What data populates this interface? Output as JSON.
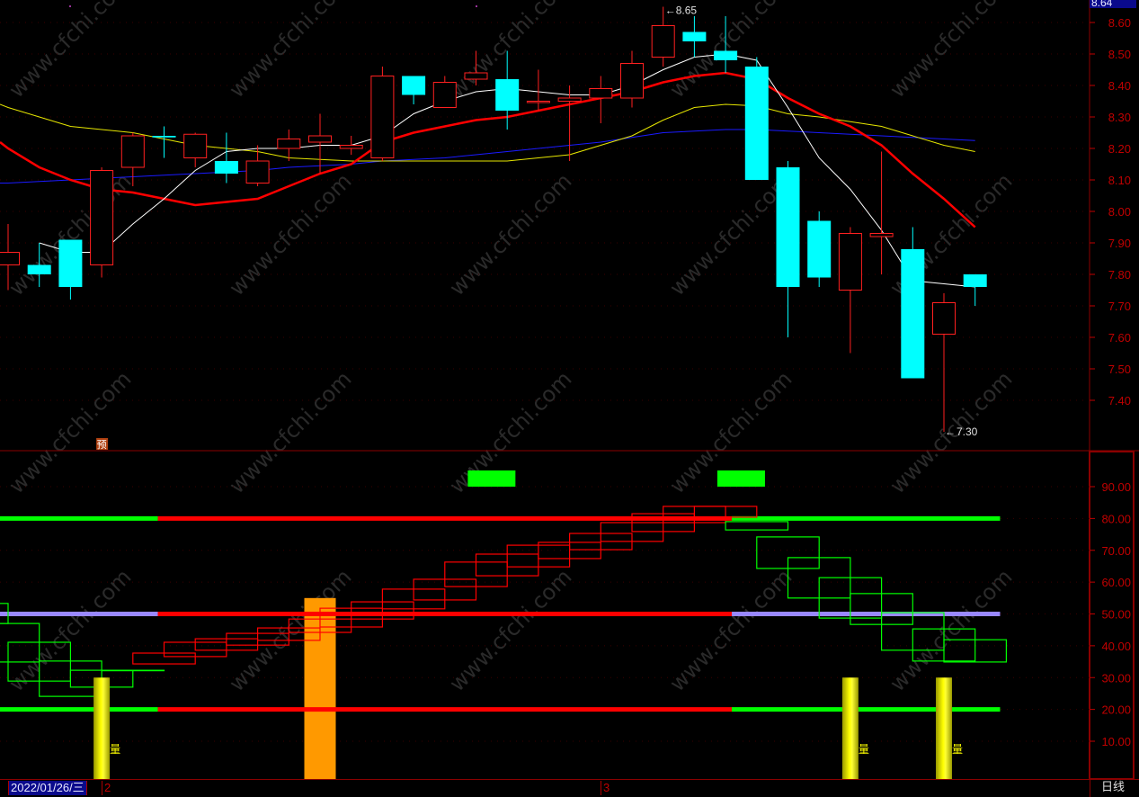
{
  "watermark": "www.cfchi.com",
  "current_price_label": "8.64",
  "colors": {
    "up": "#ff2020",
    "down": "#00ffff",
    "ma5": "#ffffff",
    "ma10": "#ff0000",
    "ma20": "#e6e600",
    "ma60": "#1a1aff",
    "axis": "#c00000",
    "box_up": "#ff0000",
    "box_down": "#00ff00",
    "band_green": "#00ff00",
    "band_red": "#ff0000",
    "band_purple": "#9988ff",
    "signal_green": "#00ff00",
    "orange_bar": "#ff9900",
    "yellow_bar": "#ffff00"
  },
  "chart_data": [
    {
      "type": "candlestick",
      "ylim": [
        7.2,
        8.64
      ],
      "y_ticks": [
        "8.60",
        "8.50",
        "8.40",
        "8.30",
        "8.20",
        "8.10",
        "8.00",
        "7.90",
        "7.80",
        "7.70",
        "7.60",
        "7.50",
        "7.40"
      ],
      "candles": [
        [
          7.83,
          7.96,
          7.75,
          7.87
        ],
        [
          7.83,
          7.9,
          7.76,
          7.8
        ],
        [
          7.91,
          7.91,
          7.72,
          7.76
        ],
        [
          7.83,
          8.14,
          7.79,
          8.13
        ],
        [
          8.14,
          8.25,
          8.08,
          8.24
        ],
        [
          8.24,
          8.27,
          8.17,
          8.235
        ],
        [
          8.17,
          8.25,
          8.14,
          8.245
        ],
        [
          8.16,
          8.25,
          8.09,
          8.12
        ],
        [
          8.09,
          8.21,
          8.08,
          8.16
        ],
        [
          8.2,
          8.26,
          8.16,
          8.23
        ],
        [
          8.22,
          8.31,
          8.12,
          8.24
        ],
        [
          8.2,
          8.24,
          8.18,
          8.21
        ],
        [
          8.17,
          8.46,
          8.16,
          8.43
        ],
        [
          8.43,
          8.43,
          8.34,
          8.37
        ],
        [
          8.33,
          8.43,
          8.33,
          8.41
        ],
        [
          8.42,
          8.51,
          8.4,
          8.44
        ],
        [
          8.42,
          8.51,
          8.26,
          8.32
        ],
        [
          8.35,
          8.45,
          8.32,
          8.35
        ],
        [
          8.35,
          8.4,
          8.16,
          8.36
        ],
        [
          8.36,
          8.43,
          8.28,
          8.39
        ],
        [
          8.36,
          8.51,
          8.33,
          8.47
        ],
        [
          8.49,
          8.65,
          8.46,
          8.59
        ],
        [
          8.57,
          8.62,
          8.49,
          8.54
        ],
        [
          8.51,
          8.62,
          8.44,
          8.48
        ],
        [
          8.46,
          8.49,
          8.1,
          8.1
        ],
        [
          8.14,
          8.16,
          7.6,
          7.76
        ],
        [
          7.97,
          8.0,
          7.76,
          7.79
        ],
        [
          7.75,
          7.95,
          7.55,
          7.93
        ],
        [
          7.92,
          8.19,
          7.8,
          7.93
        ],
        [
          7.88,
          7.95,
          7.47,
          7.47
        ],
        [
          7.61,
          7.74,
          7.3,
          7.71
        ],
        [
          7.8,
          7.8,
          7.7,
          7.76
        ]
      ],
      "ma5": [
        null,
        7.9,
        7.87,
        7.87,
        7.96,
        8.04,
        8.13,
        8.19,
        8.2,
        8.2,
        8.21,
        8.21,
        8.24,
        8.31,
        8.35,
        8.38,
        8.39,
        8.38,
        8.37,
        8.37,
        8.4,
        8.45,
        8.49,
        8.5,
        8.48,
        8.33,
        8.17,
        8.07,
        7.94,
        7.78,
        7.77,
        7.76
      ],
      "ma10": [
        8.2,
        8.14,
        8.1,
        8.07,
        8.06,
        8.04,
        8.02,
        8.03,
        8.04,
        8.08,
        8.12,
        8.15,
        8.22,
        8.25,
        8.27,
        8.29,
        8.3,
        8.32,
        8.34,
        8.36,
        8.38,
        8.41,
        8.43,
        8.44,
        8.42,
        8.36,
        8.31,
        8.27,
        8.21,
        8.12,
        8.04,
        7.95
      ],
      "ma20": [
        8.33,
        8.3,
        8.27,
        8.26,
        8.25,
        8.23,
        8.21,
        8.2,
        8.19,
        8.17,
        8.165,
        8.16,
        8.16,
        8.16,
        8.16,
        8.16,
        8.16,
        8.17,
        8.18,
        8.21,
        8.24,
        8.29,
        8.33,
        8.34,
        8.335,
        8.31,
        8.3,
        8.285,
        8.27,
        8.24,
        8.21,
        8.19
      ],
      "ma60": [
        8.09,
        8.095,
        8.1,
        8.105,
        8.11,
        8.115,
        8.12,
        8.125,
        8.13,
        8.14,
        8.145,
        8.15,
        8.16,
        8.165,
        8.17,
        8.18,
        8.19,
        8.2,
        8.21,
        8.22,
        8.235,
        8.25,
        8.255,
        8.26,
        8.26,
        8.255,
        8.25,
        8.245,
        8.24,
        8.235,
        8.23,
        8.225
      ],
      "high_marker": {
        "label": "8.65",
        "candle": 21
      },
      "low_marker": {
        "label": "7.30",
        "candle": 30
      },
      "forecast_badge": {
        "label": "预",
        "candle": 3
      }
    },
    {
      "type": "indicator",
      "ylim": [
        0,
        100
      ],
      "y_ticks": [
        "90.00",
        "80.00",
        "70.00",
        "60.00",
        "50.00",
        "40.00",
        "30.00",
        "20.00",
        "10.00"
      ],
      "boxes": [
        {
          "start": -2,
          "top": 53.3,
          "bottom": 47.0,
          "dir": "down"
        },
        {
          "start": -1,
          "top": 47.0,
          "bottom": 34.9,
          "dir": "down"
        },
        {
          "start": 0,
          "top": 41.1,
          "bottom": 28.9,
          "dir": "down"
        },
        {
          "start": 1,
          "top": 35.2,
          "bottom": 24.1,
          "dir": "down"
        },
        {
          "start": 2,
          "top": 32.3,
          "bottom": 27.0,
          "dir": "down"
        },
        {
          "start": 3,
          "top": 32.3,
          "bottom": 32.3,
          "dir": "down"
        },
        {
          "start": 4,
          "top": 37.7,
          "bottom": 34.3,
          "dir": "up"
        },
        {
          "start": 5,
          "top": 41.1,
          "bottom": 36.6,
          "dir": "up"
        },
        {
          "start": 6,
          "top": 42.2,
          "bottom": 38.6,
          "dir": "up"
        },
        {
          "start": 7,
          "top": 43.9,
          "bottom": 40.2,
          "dir": "up"
        },
        {
          "start": 8,
          "top": 45.6,
          "bottom": 41.7,
          "dir": "up"
        },
        {
          "start": 9,
          "top": 48.4,
          "bottom": 44.2,
          "dir": "up"
        },
        {
          "start": 10,
          "top": 51.8,
          "bottom": 45.9,
          "dir": "up"
        },
        {
          "start": 11,
          "top": 53.8,
          "bottom": 48.4,
          "dir": "up"
        },
        {
          "start": 12,
          "top": 57.8,
          "bottom": 51.6,
          "dir": "up"
        },
        {
          "start": 13,
          "top": 60.9,
          "bottom": 54.4,
          "dir": "up"
        },
        {
          "start": 14,
          "top": 66.3,
          "bottom": 58.6,
          "dir": "up"
        },
        {
          "start": 15,
          "top": 68.8,
          "bottom": 62.0,
          "dir": "up"
        },
        {
          "start": 16,
          "top": 71.6,
          "bottom": 64.8,
          "dir": "up"
        },
        {
          "start": 17,
          "top": 72.5,
          "bottom": 67.4,
          "dir": "up"
        },
        {
          "start": 18,
          "top": 75.3,
          "bottom": 70.2,
          "dir": "up"
        },
        {
          "start": 19,
          "top": 78.7,
          "bottom": 72.8,
          "dir": "up"
        },
        {
          "start": 20,
          "top": 81.5,
          "bottom": 75.9,
          "dir": "up"
        },
        {
          "start": 21,
          "top": 83.8,
          "bottom": 78.7,
          "dir": "up"
        },
        {
          "start": 22,
          "top": 83.8,
          "bottom": 80.4,
          "dir": "up"
        },
        {
          "start": 23,
          "top": 79.0,
          "bottom": 76.4,
          "dir": "down"
        },
        {
          "start": 24,
          "top": 74.2,
          "bottom": 64.3,
          "dir": "down"
        },
        {
          "start": 25,
          "top": 67.7,
          "bottom": 55.0,
          "dir": "down"
        },
        {
          "start": 26,
          "top": 61.4,
          "bottom": 48.7,
          "dir": "down"
        },
        {
          "start": 27,
          "top": 56.4,
          "bottom": 46.7,
          "dir": "down"
        },
        {
          "start": 28,
          "top": 50.4,
          "bottom": 38.6,
          "dir": "down"
        },
        {
          "start": 29,
          "top": 45.3,
          "bottom": 35.2,
          "dir": "down"
        },
        {
          "start": 30,
          "top": 41.9,
          "bottom": 34.9,
          "dir": "down"
        }
      ],
      "bands": [
        {
          "level": 80,
          "segments": [
            {
              "from": -1,
              "to": 4.8,
              "color": "band_green"
            },
            {
              "from": 4.8,
              "to": 23.2,
              "color": "band_red"
            },
            {
              "from": 23.2,
              "to": 31.8,
              "color": "band_green"
            }
          ]
        },
        {
          "level": 50,
          "segments": [
            {
              "from": -1,
              "to": 4.8,
              "color": "band_purple"
            },
            {
              "from": 4.8,
              "to": 23.2,
              "color": "band_red"
            },
            {
              "from": 23.2,
              "to": 31.8,
              "color": "band_purple"
            }
          ]
        },
        {
          "level": 20,
          "segments": [
            {
              "from": -1,
              "to": 4.8,
              "color": "band_green"
            },
            {
              "from": 4.8,
              "to": 23.2,
              "color": "band_red"
            },
            {
              "from": 23.2,
              "to": 31.8,
              "color": "band_green"
            }
          ]
        }
      ],
      "signal_blocks": [
        {
          "candle": 15.5
        },
        {
          "candle": 23.5
        }
      ],
      "orange_bars": [
        {
          "candle": 10,
          "value": 55
        }
      ],
      "yellow_bars": [
        {
          "candle": 3,
          "value": 30,
          "label": "量"
        },
        {
          "candle": 27,
          "value": 30,
          "label": "量"
        },
        {
          "candle": 30,
          "value": 30,
          "label": "量"
        }
      ]
    }
  ],
  "footer": {
    "date": "2022/01/26/三",
    "months": [
      "2",
      "3"
    ],
    "period": "日线"
  }
}
